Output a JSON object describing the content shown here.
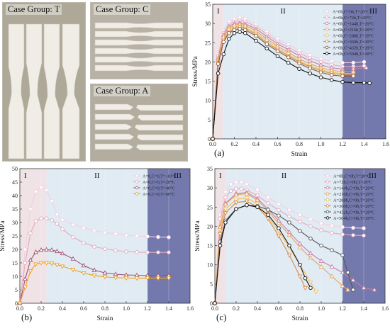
{
  "photos": {
    "t_label": "Case Group: T",
    "c_label": "Case Group: C",
    "a_label": "Case Group: A",
    "bg_color": "#b6b0a4",
    "specimen_color": "#eeece6"
  },
  "chart_data": [
    {
      "id": "a",
      "type": "line",
      "panel_label": "(a)",
      "xlabel": "Strain",
      "ylabel": "Stress/MPa",
      "xlim": [
        0,
        1.6
      ],
      "ylim": [
        0,
        35
      ],
      "xticks": [
        0,
        0.2,
        0.4,
        0.6,
        0.8,
        1.0,
        1.2,
        1.4,
        1.6
      ],
      "yticks": [
        0,
        5,
        10,
        15,
        20,
        25,
        30,
        35
      ],
      "regions": [
        {
          "label": "I",
          "from": 0,
          "to": 0.1,
          "color": "#efe3e6"
        },
        {
          "label": "II",
          "from": 0.1,
          "to": 1.2,
          "color": "#e0ebf3"
        },
        {
          "label": "III",
          "from": 1.2,
          "to": 1.6,
          "color": "#7379ad"
        }
      ],
      "legend_position": "top-right",
      "series": [
        {
          "name": "A=0h,C=0h,T=20°C",
          "color": "#f4cfe0",
          "marker": "o",
          "x": [
            0,
            0.05,
            0.1,
            0.15,
            0.2,
            0.25,
            0.3,
            0.4,
            0.5,
            0.6,
            0.7,
            0.8,
            0.9,
            1.0,
            1.1,
            1.2,
            1.3,
            1.4
          ],
          "y": [
            0,
            22,
            28,
            30.5,
            31.2,
            31.5,
            31.2,
            29.8,
            27.8,
            26,
            24.5,
            23,
            21.8,
            20.8,
            20.2,
            19.8,
            19.8,
            20
          ]
        },
        {
          "name": "A=0h,C=72h,T=20°C",
          "color": "#e7a9be",
          "marker": "o",
          "x": [
            0,
            0.05,
            0.1,
            0.15,
            0.2,
            0.25,
            0.3,
            0.4,
            0.5,
            0.6,
            0.7,
            0.8,
            0.9,
            1.0,
            1.1,
            1.2,
            1.3,
            1.4
          ],
          "y": [
            0,
            21.5,
            27.5,
            29.8,
            30.5,
            30.8,
            30.5,
            29.2,
            27.2,
            25.3,
            23.8,
            22.3,
            21,
            20,
            19.3,
            18.8,
            18.8,
            19
          ]
        },
        {
          "name": "A=0h,C=144h,T=20°C",
          "color": "#c97fa4",
          "marker": "^",
          "x": [
            0,
            0.05,
            0.1,
            0.15,
            0.2,
            0.25,
            0.3,
            0.4,
            0.5,
            0.6,
            0.7,
            0.8,
            0.9,
            1.0,
            1.1,
            1.2,
            1.3,
            1.42
          ],
          "y": [
            0,
            21,
            27,
            29.3,
            30,
            30.2,
            29.9,
            28.6,
            26.6,
            24.7,
            23.2,
            21.6,
            20.3,
            19.2,
            18.5,
            18.1,
            18.2,
            18.5
          ]
        },
        {
          "name": "A=0h,C=216h,T=20°C",
          "color": "#e7a35f",
          "marker": "^",
          "x": [
            0,
            0.05,
            0.1,
            0.15,
            0.2,
            0.25,
            0.3,
            0.4,
            0.5,
            0.6,
            0.7,
            0.8,
            0.9,
            1.0,
            1.1,
            1.2,
            1.3
          ],
          "y": [
            0,
            20.5,
            26.5,
            28.8,
            29.6,
            29.8,
            29.5,
            28.1,
            26,
            24.1,
            22.5,
            20.8,
            19.5,
            18.5,
            17.8,
            17.5,
            17.5
          ]
        },
        {
          "name": "A=0h,C=288h,T=20°C",
          "color": "#f2c15b",
          "marker": "v",
          "x": [
            0,
            0.05,
            0.1,
            0.15,
            0.2,
            0.25,
            0.3,
            0.4,
            0.5,
            0.6,
            0.7,
            0.8,
            0.9,
            1.0,
            1.1,
            1.2,
            1.3
          ],
          "y": [
            0,
            20,
            26,
            28.3,
            29.1,
            29.3,
            29,
            27.6,
            25.5,
            23.6,
            22,
            20.3,
            19,
            18,
            17.3,
            17,
            17
          ]
        },
        {
          "name": "A=0h,C=360h,T=20°C",
          "color": "#d9894b",
          "marker": "v",
          "x": [
            0,
            0.05,
            0.1,
            0.15,
            0.2,
            0.25,
            0.3,
            0.4,
            0.5,
            0.6,
            0.7,
            0.8,
            0.9,
            1.0,
            1.1,
            1.2,
            1.3
          ],
          "y": [
            0,
            19.8,
            25.6,
            27.9,
            28.7,
            29,
            28.7,
            27.2,
            25,
            23.2,
            21.6,
            20,
            18.7,
            17.7,
            17,
            16.7,
            16.7
          ]
        },
        {
          "name": "A=0h,C=432h,T=20°C",
          "color": "#8a5a3a",
          "marker": "o",
          "x": [
            0,
            0.05,
            0.1,
            0.15,
            0.2,
            0.25,
            0.3,
            0.4,
            0.5,
            0.6,
            0.7,
            0.8,
            0.9,
            1.0,
            1.1,
            1.2,
            1.3
          ],
          "y": [
            0,
            19.5,
            25.2,
            27.5,
            28.3,
            28.6,
            28.3,
            26.8,
            24.6,
            22.8,
            21.2,
            19.6,
            18.3,
            17.3,
            16.6,
            16.3,
            16.3
          ]
        },
        {
          "name": "A=0h,C=504h,T=20°C",
          "color": "#111111",
          "marker": "o",
          "x": [
            0,
            0.05,
            0.1,
            0.15,
            0.2,
            0.25,
            0.3,
            0.4,
            0.5,
            0.6,
            0.7,
            0.8,
            0.9,
            1.0,
            1.1,
            1.2,
            1.3,
            1.4,
            1.45
          ],
          "y": [
            0,
            17,
            22,
            26,
            27.5,
            27.8,
            27.5,
            25.5,
            23.5,
            21.5,
            19.8,
            18.2,
            17,
            16,
            15.3,
            14.8,
            14.6,
            14.6,
            14.5
          ]
        }
      ]
    },
    {
      "id": "b",
      "type": "line",
      "panel_label": "(b)",
      "xlabel": "Strain",
      "ylabel": "Stress/MPa",
      "xlim": [
        0,
        1.6
      ],
      "ylim": [
        0,
        50
      ],
      "xticks": [
        0,
        0.2,
        0.4,
        0.6,
        0.8,
        1.0,
        1.2,
        1.4,
        1.6
      ],
      "yticks": [
        0,
        5,
        10,
        15,
        20,
        25,
        30,
        35,
        40,
        45,
        50
      ],
      "regions": [
        {
          "label": "I",
          "from": 0,
          "to": 0.25,
          "color": "#efe3e6"
        },
        {
          "label": "II",
          "from": 0.25,
          "to": 1.2,
          "color": "#e0ebf3"
        },
        {
          "label": "III",
          "from": 1.2,
          "to": 1.6,
          "color": "#7379ad"
        }
      ],
      "legend_position": "top-right",
      "series": [
        {
          "name": "A=0,C=0,T=-10°C",
          "color": "#f4cfe0",
          "marker": "o",
          "x": [
            0,
            0.05,
            0.1,
            0.15,
            0.2,
            0.25,
            0.3,
            0.35,
            0.4,
            0.5,
            0.6,
            0.7,
            0.8,
            0.9,
            1.0,
            1.1,
            1.2,
            1.3,
            1.4
          ],
          "y": [
            0,
            20,
            35,
            41.5,
            43,
            42,
            38,
            33,
            31,
            29.2,
            28,
            27,
            26.3,
            25.8,
            25.3,
            25,
            24.8,
            24.6,
            24.5
          ]
        },
        {
          "name": "A=0,C=0,T=20°C",
          "color": "#e7a9be",
          "marker": "o",
          "x": [
            0,
            0.05,
            0.1,
            0.15,
            0.2,
            0.25,
            0.3,
            0.35,
            0.4,
            0.5,
            0.6,
            0.7,
            0.8,
            0.9,
            1.0,
            1.1,
            1.2,
            1.3,
            1.4
          ],
          "y": [
            0,
            15,
            26,
            30.5,
            31.5,
            31.5,
            30.8,
            29.5,
            27.5,
            24.5,
            22.5,
            21,
            20.2,
            19.6,
            19.2,
            19,
            18.9,
            18.9,
            18.9
          ]
        },
        {
          "name": "A=0,C=0,T=40°C",
          "color": "#a05575",
          "marker": "^",
          "x": [
            0,
            0.05,
            0.1,
            0.15,
            0.2,
            0.25,
            0.3,
            0.35,
            0.4,
            0.5,
            0.6,
            0.7,
            0.8,
            0.9,
            1.0,
            1.1,
            1.2,
            1.3,
            1.4
          ],
          "y": [
            0,
            9,
            16,
            19,
            19.8,
            19.9,
            19.8,
            19.3,
            18.5,
            16.5,
            14,
            12.3,
            11.3,
            10.8,
            10.5,
            10.4,
            10.3,
            10.3,
            10.3
          ]
        },
        {
          "name": "A=0,C=0,T=60°C",
          "color": "#f0a020",
          "marker": "v",
          "x": [
            0,
            0.05,
            0.1,
            0.15,
            0.2,
            0.25,
            0.3,
            0.35,
            0.4,
            0.5,
            0.6,
            0.7,
            0.8,
            0.9,
            1.0,
            1.1,
            1.2,
            1.3,
            1.4
          ],
          "y": [
            0,
            6,
            12,
            14.5,
            15,
            15,
            14.8,
            14.3,
            13.7,
            12.5,
            11.2,
            10.3,
            9.8,
            9.5,
            9.4,
            9.3,
            9.3,
            9.3,
            9.3
          ]
        }
      ]
    },
    {
      "id": "c",
      "type": "line",
      "panel_label": "(c)",
      "xlabel": "Strain",
      "ylabel": "Stress/MPa",
      "xlim": [
        0,
        1.6
      ],
      "ylim": [
        0,
        35
      ],
      "xticks": [
        0,
        0.2,
        0.4,
        0.6,
        0.8,
        1.0,
        1.2,
        1.4,
        1.6
      ],
      "yticks": [
        0,
        5,
        10,
        15,
        20,
        25,
        30,
        35
      ],
      "regions": [
        {
          "label": "I",
          "from": 0,
          "to": 0.1,
          "color": "#efe3e6"
        },
        {
          "label": "II",
          "from": 0.1,
          "to": 1.2,
          "color": "#e0ebf3"
        },
        {
          "label": "III",
          "from": 1.2,
          "to": 1.6,
          "color": "#7379ad"
        }
      ],
      "legend_position": "top-right",
      "series": [
        {
          "name": "A=0h,C=0h,T=20°C",
          "color": "#f4cfe0",
          "marker": "o",
          "x": [
            0,
            0.05,
            0.1,
            0.15,
            0.2,
            0.25,
            0.3,
            0.4,
            0.5,
            0.6,
            0.7,
            0.8,
            0.9,
            1.0,
            1.1,
            1.2,
            1.3,
            1.4
          ],
          "y": [
            0,
            23,
            29,
            31,
            31.5,
            31.5,
            31,
            29.5,
            27.5,
            25.8,
            24.3,
            23,
            21.8,
            20.8,
            20.2,
            19.8,
            19.6,
            19.5
          ]
        },
        {
          "name": "A=72h,C=0h,T=20°C",
          "color": "#e7a9be",
          "marker": "o",
          "x": [
            0,
            0.05,
            0.1,
            0.15,
            0.2,
            0.25,
            0.3,
            0.4,
            0.5,
            0.6,
            0.7,
            0.8,
            0.9,
            1.0,
            1.1,
            1.2,
            1.3,
            1.4
          ],
          "y": [
            0,
            22,
            27.5,
            29.2,
            29.8,
            29.8,
            29.4,
            28,
            26,
            24.2,
            22.6,
            21.2,
            20,
            19,
            18.3,
            17.9,
            17.7,
            17.6
          ]
        },
        {
          "name": "A=144h,C=0h,T=20°C",
          "color": "#c97fa4",
          "marker": "^",
          "x": [
            0,
            0.05,
            0.1,
            0.2,
            0.3,
            0.4,
            0.5,
            0.6,
            0.7,
            0.8,
            0.9,
            1.0,
            1.1,
            1.2,
            1.3,
            1.4,
            1.5
          ],
          "y": [
            0,
            20,
            26,
            28.5,
            28.8,
            27.2,
            24.5,
            21.5,
            18.5,
            15.5,
            13,
            11,
            9.5,
            8,
            6,
            4,
            3.5
          ]
        },
        {
          "name": "A=216h,C=0h,T=20°C",
          "color": "#e7a35f",
          "marker": "^",
          "x": [
            0,
            0.05,
            0.1,
            0.2,
            0.3,
            0.4,
            0.5,
            0.6,
            0.7,
            0.8,
            0.9,
            1.0,
            1.1,
            1.2,
            1.25
          ],
          "y": [
            0,
            19.8,
            25.8,
            28.2,
            28.5,
            26.8,
            24,
            20.8,
            17.8,
            14.5,
            11.8,
            9.5,
            7,
            4.5,
            3.5
          ]
        },
        {
          "name": "A=288h,C=0h,T=20°C",
          "color": "#f2c15b",
          "marker": "v",
          "x": [
            0,
            0.05,
            0.1,
            0.2,
            0.3,
            0.4,
            0.5,
            0.6,
            0.7,
            0.8,
            0.9,
            0.95
          ],
          "y": [
            0,
            19,
            24.5,
            27,
            27.4,
            25.8,
            22.5,
            18.8,
            14.5,
            10,
            5.5,
            3
          ]
        },
        {
          "name": "A=360h,C=0h,T=20°C",
          "color": "#d9894b",
          "marker": "v",
          "x": [
            0,
            0.05,
            0.1,
            0.2,
            0.3,
            0.4,
            0.5,
            0.6,
            0.7,
            0.8,
            0.85
          ],
          "y": [
            0,
            18,
            23.5,
            26.2,
            26.5,
            25,
            22,
            17.5,
            12.5,
            7,
            4
          ]
        },
        {
          "name": "A=432h,C=0h,T=20°C",
          "color": "#555555",
          "marker": "o",
          "x": [
            0,
            0.05,
            0.1,
            0.2,
            0.3,
            0.4,
            0.5,
            0.6,
            0.7,
            0.8,
            0.9,
            1.0,
            1.1,
            1.2,
            1.25,
            1.3
          ],
          "y": [
            0,
            16,
            21.5,
            24.5,
            25.5,
            25.3,
            24.3,
            22.8,
            21,
            18.8,
            16.8,
            15,
            13.8,
            12.5,
            8,
            3.5
          ]
        },
        {
          "name": "A=504h,C=0h,T=20°C",
          "color": "#111111",
          "marker": "o",
          "x": [
            0,
            0.05,
            0.1,
            0.2,
            0.3,
            0.4,
            0.5,
            0.6,
            0.7,
            0.8,
            0.85,
            0.9
          ],
          "y": [
            0,
            15,
            21,
            24.5,
            25.5,
            25,
            23,
            19.5,
            15,
            10,
            6.5,
            4
          ]
        }
      ]
    }
  ]
}
